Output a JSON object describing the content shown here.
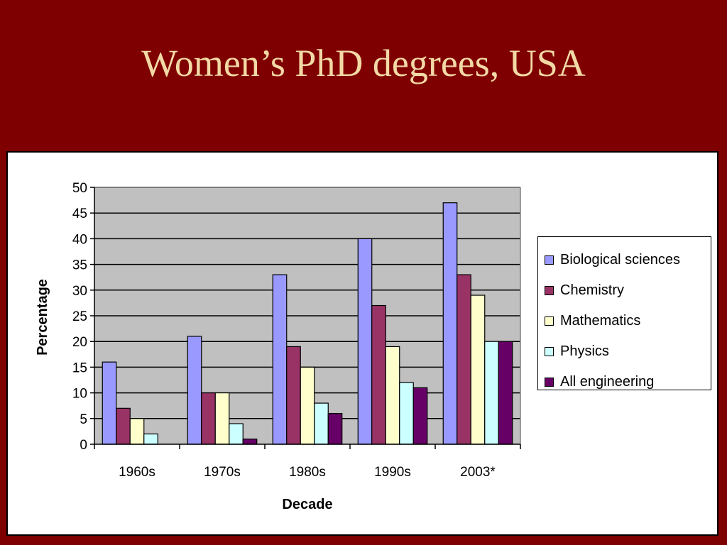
{
  "slide": {
    "title": "Women’s PhD degrees, USA",
    "background": "#7f0000",
    "title_color": "#f2d9a6"
  },
  "chart_data": {
    "type": "bar",
    "xlabel": "Decade",
    "ylabel": "Percentage",
    "ylim": [
      0,
      50
    ],
    "ytick_step": 5,
    "yticks": [
      "0",
      "5",
      "10",
      "15",
      "20",
      "25",
      "30",
      "35",
      "40",
      "45",
      "50"
    ],
    "categories": [
      "1960s",
      "1970s",
      "1980s",
      "1990s",
      "2003*"
    ],
    "grid": true,
    "plot_background": "#c0c0c0",
    "legend_position": "right",
    "series": [
      {
        "name": "Biological sciences",
        "color": "#9999ff",
        "values": [
          16,
          21,
          33,
          40,
          47
        ]
      },
      {
        "name": "Chemistry",
        "color": "#993366",
        "values": [
          7,
          10,
          19,
          27,
          33
        ]
      },
      {
        "name": "Mathematics",
        "color": "#ffffcc",
        "values": [
          5,
          10,
          15,
          19,
          29
        ]
      },
      {
        "name": "Physics",
        "color": "#ccffff",
        "values": [
          2,
          4,
          8,
          12,
          20
        ]
      },
      {
        "name": "All engineering",
        "color": "#660066",
        "values": [
          0,
          1,
          6,
          11,
          20
        ]
      }
    ]
  }
}
